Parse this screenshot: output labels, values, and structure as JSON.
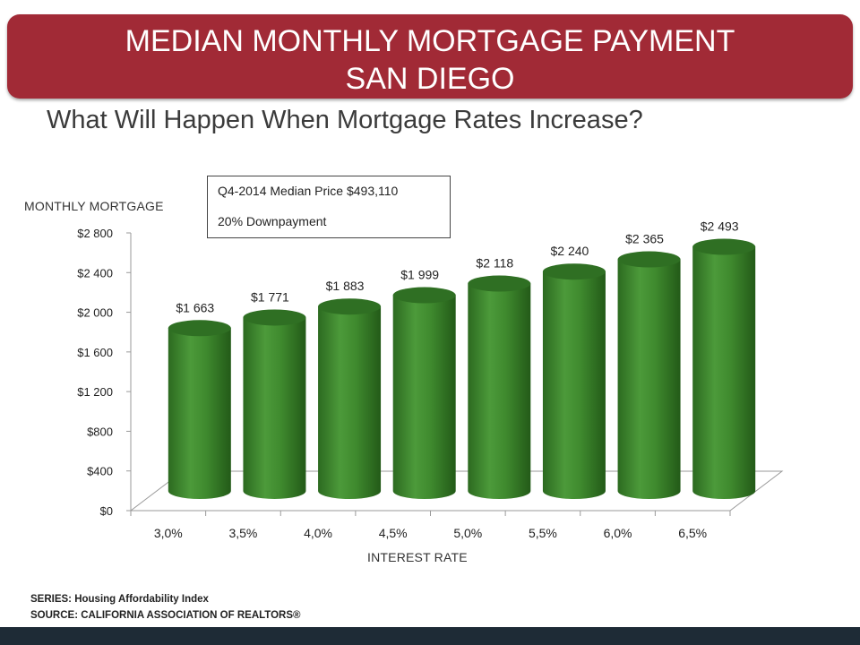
{
  "banner": {
    "title_line1": "MEDIAN MONTHLY MORTGAGE PAYMENT",
    "title_line2": "SAN DIEGO"
  },
  "subtitle": "What Will Happen When Mortgage Rates Increase?",
  "info_box": {
    "line1": "Q4-2014 Median Price $493,110",
    "line2": "20% Downpayment"
  },
  "footer": {
    "series": "SERIES: Housing Affordability Index",
    "source": "SOURCE: CALIFORNIA ASSOCIATION OF REALTORS®"
  },
  "colors": {
    "banner": "#a12a36",
    "bar": "#3d8a2e",
    "bottom_bar": "#1e2b36"
  },
  "chart_data": {
    "type": "bar",
    "style": "3d-cylinder",
    "xlabel": "INTEREST RATE",
    "ylabel": "MONTHLY MORTGAGE",
    "categories": [
      "3,0%",
      "3,5%",
      "4,0%",
      "4,5%",
      "5,0%",
      "5,5%",
      "6,0%",
      "6,5%"
    ],
    "values": [
      1663,
      1771,
      1883,
      1999,
      2118,
      2240,
      2365,
      2493
    ],
    "value_labels": [
      "$1 663",
      "$1 771",
      "$1 883",
      "$1 999",
      "$2 118",
      "$2 240",
      "$2 365",
      "$2 493"
    ],
    "ylim": [
      0,
      2800
    ],
    "yticks": [
      0,
      400,
      800,
      1200,
      1600,
      2000,
      2400,
      2800
    ],
    "ytick_labels": [
      "$0",
      "$400",
      "$800",
      "$1 200",
      "$1 600",
      "$2 000",
      "$2 400",
      "$2 800"
    ],
    "grid": false,
    "legend": "none"
  }
}
